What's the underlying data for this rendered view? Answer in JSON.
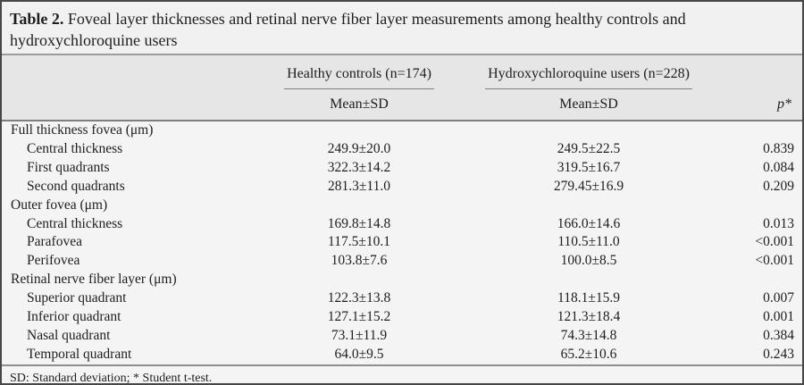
{
  "title": {
    "label": "Table 2.",
    "text": "Foveal layer thicknesses and retinal nerve fiber layer measurements among healthy controls and hydroxychloroquine users"
  },
  "header": {
    "col1_group": "Healthy controls (n=174)",
    "col2_group": "Hydroxychloroquine users (n=228)",
    "col1_sub": "Mean±SD",
    "col2_sub": "Mean±SD",
    "p_label": "p*"
  },
  "sections": [
    {
      "label": "Full thickness fovea (μm)",
      "rows": [
        {
          "label": "Central thickness",
          "healthy": "249.9±20.0",
          "hcq": "249.5±22.5",
          "p": "0.839"
        },
        {
          "label": "First quadrants",
          "healthy": "322.3±14.2",
          "hcq": "319.5±16.7",
          "p": "0.084"
        },
        {
          "label": "Second quadrants",
          "healthy": "281.3±11.0",
          "hcq": "279.45±16.9",
          "p": "0.209"
        }
      ]
    },
    {
      "label": "Outer fovea (μm)",
      "rows": [
        {
          "label": "Central thickness",
          "healthy": "169.8±14.8",
          "hcq": "166.0±14.6",
          "p": "0.013"
        },
        {
          "label": "Parafovea",
          "healthy": "117.5±10.1",
          "hcq": "110.5±11.0",
          "p": "<0.001"
        },
        {
          "label": "Perifovea",
          "healthy": "103.8±7.6",
          "hcq": "100.0±8.5",
          "p": "<0.001"
        }
      ]
    },
    {
      "label": "Retinal nerve fiber layer (μm)",
      "rows": [
        {
          "label": "Superior quadrant",
          "healthy": "122.3±13.8",
          "hcq": "118.1±15.9",
          "p": "0.007"
        },
        {
          "label": "Inferior quadrant",
          "healthy": "127.1±15.2",
          "hcq": "121.3±18.4",
          "p": "0.001"
        },
        {
          "label": "Nasal quadrant",
          "healthy": "73.1±11.9",
          "hcq": "74.3±14.8",
          "p": "0.384"
        },
        {
          "label": "Temporal quadrant",
          "healthy": "64.0±9.5",
          "hcq": "65.2±10.6",
          "p": "0.243"
        }
      ]
    }
  ],
  "footnote": "SD: Standard deviation; * Student t-test.",
  "colors": {
    "outer_border": "#474747",
    "caption_bg": "#f0f1f0",
    "header_band_bg": "#e5e6e5",
    "body_bg": "#f3f4f3",
    "rule_gray": "#7e7e7e",
    "text": "#1e1e1e"
  }
}
